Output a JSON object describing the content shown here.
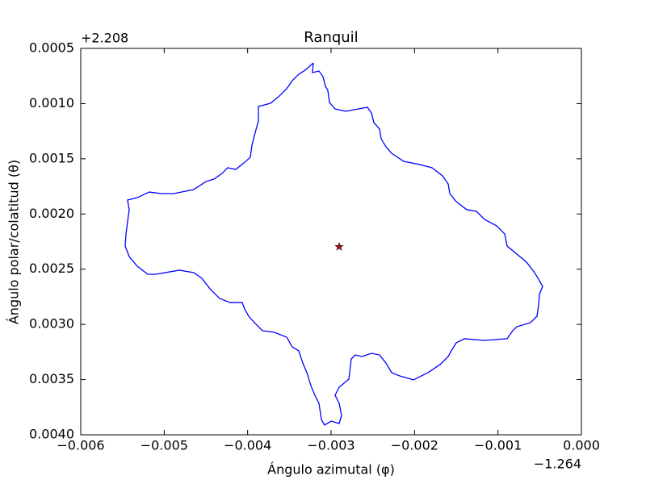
{
  "chart_data": {
    "type": "line",
    "title": "Ranquil",
    "xlabel": "Ángulo azimutal (φ)",
    "ylabel": "Ángulo polar/colatitud (θ)",
    "x_offset": "−1.264",
    "y_offset": "+2.208",
    "color": "#0000ff",
    "x": [
      -0.003213,
      -0.003223,
      -0.003145,
      -0.003097,
      -0.003068,
      -0.003039,
      -0.003019,
      -0.002952,
      -0.002826,
      -0.002565,
      -0.002516,
      -0.002487,
      -0.002419,
      -0.0024,
      -0.002342,
      -0.002274,
      -0.002129,
      -0.001936,
      -0.00179,
      -0.001665,
      -0.001597,
      -0.001577,
      -0.0015,
      -0.001374,
      -0.001258,
      -0.001161,
      -0.001016,
      -0.000919,
      -0.00089,
      -0.000774,
      -0.000658,
      -0.000561,
      -0.000503,
      -0.000465,
      -0.000503,
      -0.000513,
      -0.000532,
      -0.00061,
      -0.000774,
      -0.000823,
      -0.00089,
      -0.001161,
      -0.001403,
      -0.0015,
      -0.001548,
      -0.001597,
      -0.001694,
      -0.001839,
      -0.002013,
      -0.002177,
      -0.002274,
      -0.002342,
      -0.002419,
      -0.002516,
      -0.002632,
      -0.00271,
      -0.002758,
      -0.002787,
      -0.002903,
      -0.002952,
      -0.002903,
      -0.002874,
      -0.002903,
      -0.003,
      -0.003078,
      -0.003116,
      -0.003145,
      -0.003194,
      -0.003242,
      -0.00329,
      -0.003339,
      -0.003387,
      -0.003465,
      -0.003532,
      -0.003678,
      -0.003823,
      -0.003919,
      -0.003987,
      -0.004036,
      -0.004065,
      -0.00421,
      -0.004336,
      -0.004452,
      -0.004549,
      -0.004645,
      -0.004819,
      -0.0051,
      -0.005197,
      -0.005323,
      -0.005419,
      -0.005468,
      -0.005458,
      -0.005439,
      -0.005419,
      -0.005439,
      -0.005323,
      -0.005178,
      -0.005032,
      -0.004887,
      -0.004645,
      -0.0045,
      -0.004403,
      -0.004307,
      -0.004239,
      -0.004142,
      -0.004045,
      -0.003968,
      -0.003948,
      -0.003919,
      -0.003871,
      -0.003871,
      -0.003726,
      -0.003629,
      -0.003532,
      -0.003465,
      -0.003387,
      -0.00331,
      -0.003213
    ],
    "values": [
      0.000632,
      0.000719,
      0.000705,
      0.000756,
      0.000843,
      0.00088,
      0.00099,
      0.001048,
      0.00107,
      0.001033,
      0.001085,
      0.001172,
      0.001231,
      0.001318,
      0.001391,
      0.00145,
      0.001523,
      0.001552,
      0.001581,
      0.001654,
      0.001728,
      0.001815,
      0.001888,
      0.001961,
      0.001976,
      0.002049,
      0.002107,
      0.002181,
      0.00229,
      0.002363,
      0.002436,
      0.002531,
      0.002604,
      0.002656,
      0.002729,
      0.002824,
      0.002926,
      0.002984,
      0.003021,
      0.003057,
      0.00313,
      0.003145,
      0.00313,
      0.003167,
      0.003225,
      0.003291,
      0.003364,
      0.003437,
      0.003503,
      0.003467,
      0.003437,
      0.00335,
      0.003277,
      0.003262,
      0.003291,
      0.003277,
      0.003313,
      0.003496,
      0.003569,
      0.003642,
      0.003715,
      0.003825,
      0.003898,
      0.003876,
      0.003912,
      0.003861,
      0.003715,
      0.003642,
      0.003554,
      0.003437,
      0.00335,
      0.00324,
      0.003204,
      0.003116,
      0.003072,
      0.003057,
      0.002984,
      0.002926,
      0.00286,
      0.002802,
      0.002802,
      0.002765,
      0.002677,
      0.002582,
      0.002531,
      0.002509,
      0.002546,
      0.002546,
      0.002473,
      0.002385,
      0.00229,
      0.002181,
      0.002071,
      0.001961,
      0.001874,
      0.001852,
      0.001801,
      0.001815,
      0.001815,
      0.001779,
      0.001706,
      0.001684,
      0.001633,
      0.001581,
      0.001596,
      0.001538,
      0.001486,
      0.001377,
      0.001289,
      0.001158,
      0.001026,
      0.000997,
      0.000938,
      0.000865,
      0.000792,
      0.000734,
      0.000697,
      0.000632
    ],
    "points": {
      "x": [
        -0.002903
      ],
      "values": [
        0.002297
      ],
      "color": "#cc0000"
    },
    "xlim": [
      -0.006,
      0
    ],
    "ylim": [
      0.004,
      0.0005
    ],
    "xticks": [
      {
        "value": -0.006,
        "label": "−0.006"
      },
      {
        "value": -0.005,
        "label": "−0.005"
      },
      {
        "value": -0.004,
        "label": "−0.004"
      },
      {
        "value": -0.003,
        "label": "−0.003"
      },
      {
        "value": -0.002,
        "label": "−0.002"
      },
      {
        "value": -0.001,
        "label": "−0.001"
      },
      {
        "value": 0,
        "label": "0.000"
      }
    ],
    "yticks": [
      0.0005,
      {
        "value": 0.001,
        "label": "0.0010"
      },
      0.0015,
      {
        "value": 0.002,
        "label": "0.0020"
      },
      0.0025,
      {
        "value": 0.003,
        "label": "0.0030"
      },
      0.0035,
      {
        "value": 0.004,
        "label": "0.0040"
      }
    ]
  }
}
